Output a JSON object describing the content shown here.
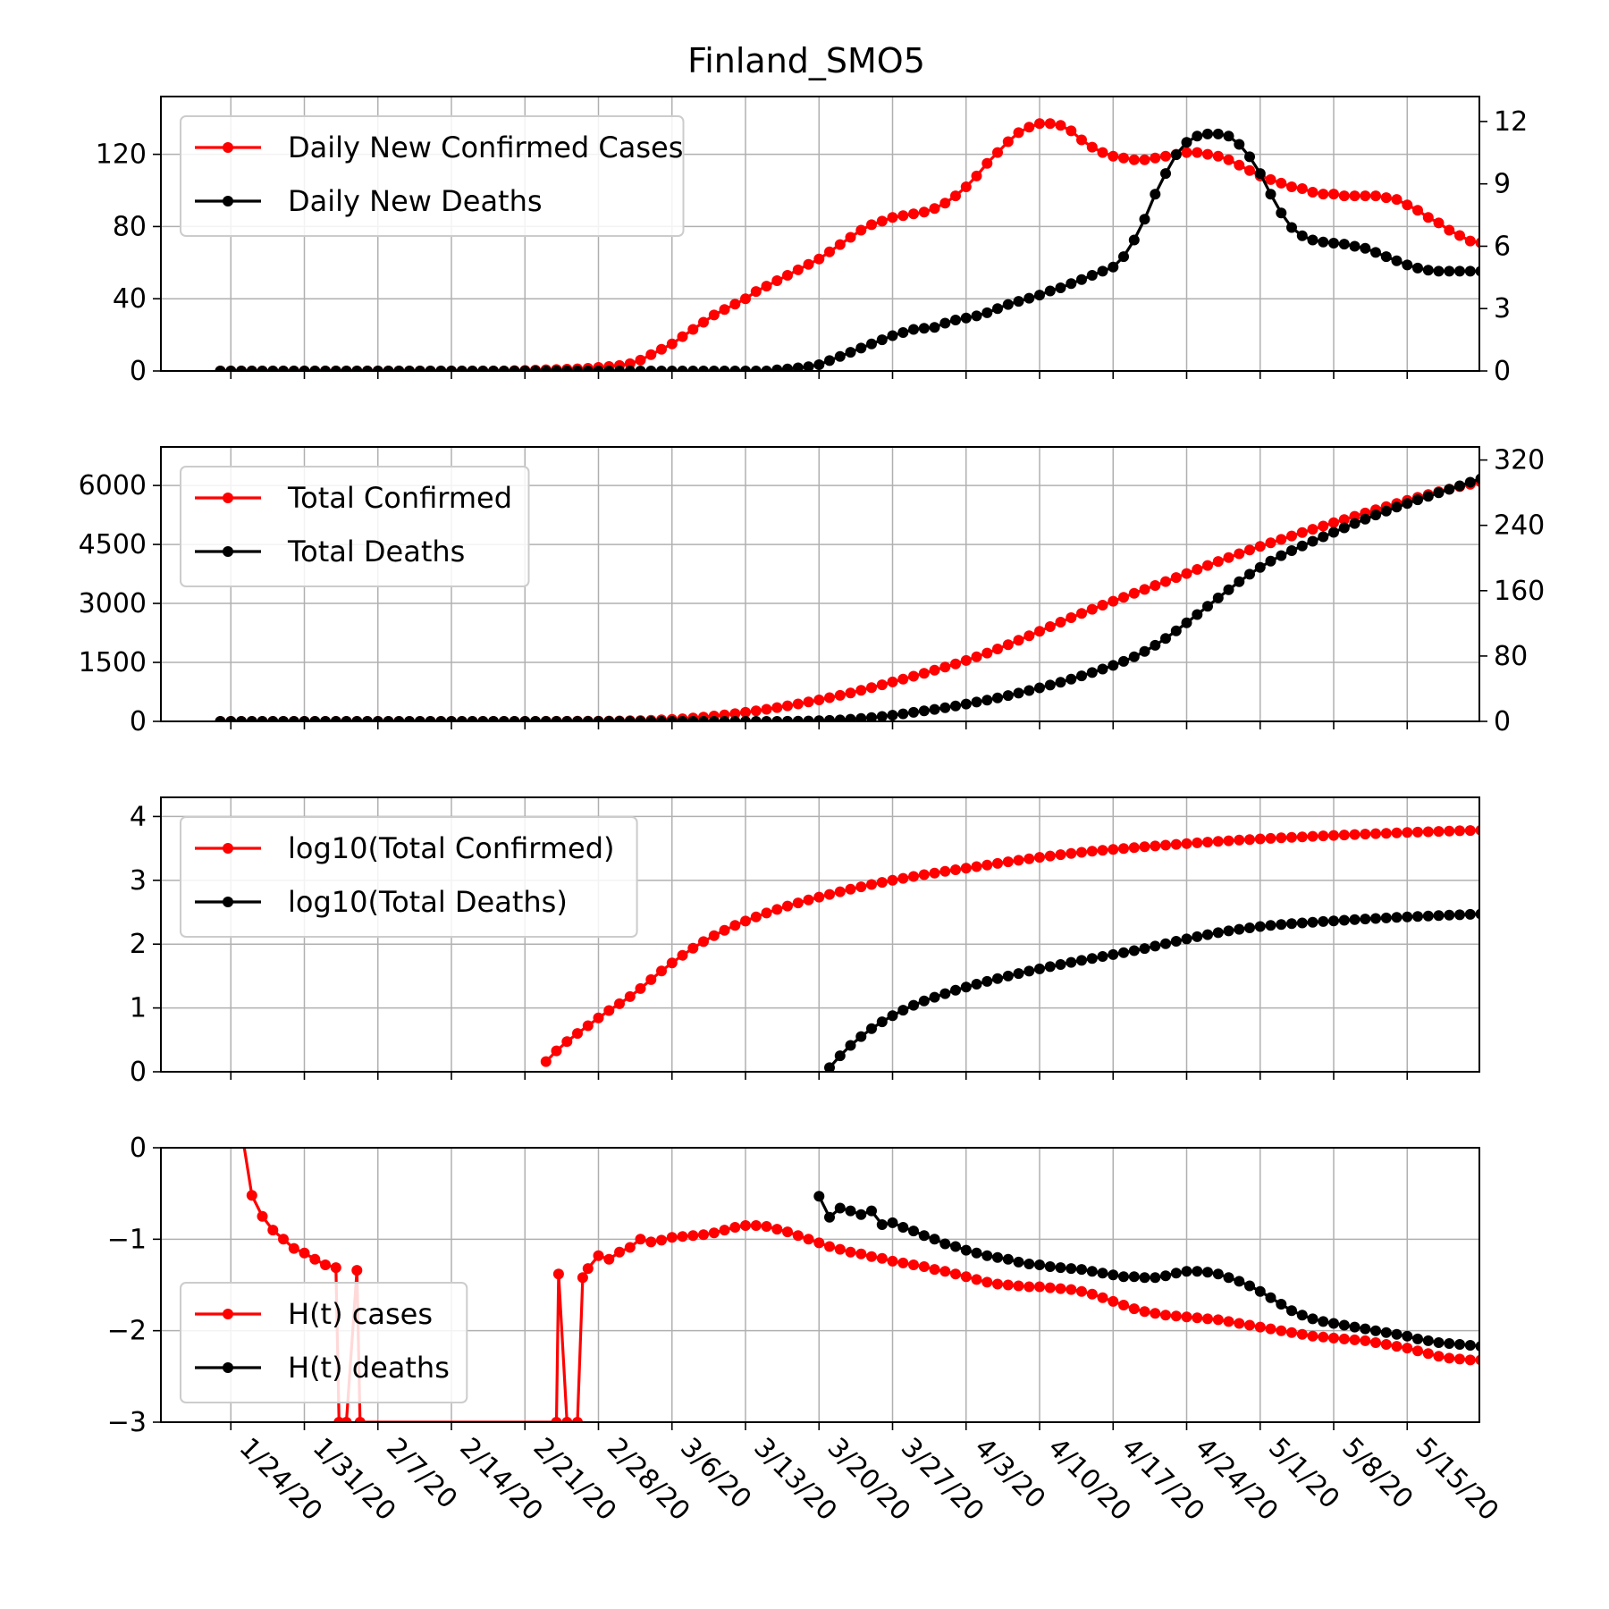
{
  "colors": {
    "cases": "#ff0000",
    "deaths": "#000000",
    "grid": "#b0b0b0"
  },
  "chart_data": [
    {
      "type": "line",
      "title": "Finland_SMO5",
      "x_tick_labels": [
        "1/24/20",
        "1/31/20",
        "2/7/20",
        "2/14/20",
        "2/21/20",
        "2/28/20",
        "3/6/20",
        "3/13/20",
        "3/20/20",
        "3/27/20",
        "4/3/20",
        "4/10/20",
        "4/17/20",
        "4/24/20",
        "5/1/20",
        "5/8/20",
        "5/15/20"
      ],
      "ylim_left": [
        0,
        152
      ],
      "yticks_left": [
        "0",
        "40",
        "80",
        "120"
      ],
      "ylim_right": [
        0,
        13.2
      ],
      "yticks_right": [
        "0",
        "3",
        "6",
        "9",
        "12"
      ],
      "grid": true,
      "legend_position": "upper-left",
      "legend": [
        "Daily New Confirmed Cases",
        "Daily New Deaths"
      ],
      "series": [
        {
          "name": "Daily New Confirmed Cases",
          "axis": "left",
          "start_date": "1/23/20",
          "values": [
            0,
            0,
            0,
            0,
            0,
            0,
            0,
            0,
            0,
            0,
            0,
            0,
            0,
            0,
            0,
            0,
            0,
            0,
            0,
            0,
            0,
            0,
            0,
            0,
            0,
            0,
            0,
            0,
            0.2,
            0.3,
            0.5,
            0.7,
            0.8,
            1,
            1.2,
            1.5,
            2,
            2.5,
            3,
            4,
            6,
            9,
            12,
            15,
            19,
            23,
            27,
            31,
            34,
            37,
            40,
            44,
            47,
            50,
            53,
            56,
            59,
            62,
            66,
            70,
            74,
            78,
            81,
            83,
            85,
            86,
            87,
            88,
            90,
            93,
            97,
            102,
            108,
            115,
            121,
            127,
            132,
            135,
            137,
            137,
            136,
            133,
            128,
            124,
            121,
            119,
            118,
            117,
            117,
            118,
            119,
            120,
            121,
            121,
            120,
            119,
            117,
            114,
            111,
            108,
            106,
            104,
            102,
            101,
            99,
            98,
            98,
            97,
            97,
            97,
            97,
            96,
            95,
            92,
            89,
            85,
            82,
            78,
            75,
            72,
            71,
            70,
            70,
            70
          ]
        },
        {
          "name": "Daily New Deaths",
          "axis": "right",
          "start_date": "1/23/20",
          "values": [
            0,
            0,
            0,
            0,
            0,
            0,
            0,
            0,
            0,
            0,
            0,
            0,
            0,
            0,
            0,
            0,
            0,
            0,
            0,
            0,
            0,
            0,
            0,
            0,
            0,
            0,
            0,
            0,
            0,
            0,
            0,
            0,
            0,
            0,
            0,
            0,
            0,
            0,
            0,
            0,
            0,
            0,
            0,
            0,
            0,
            0,
            0,
            0,
            0,
            0,
            0,
            0,
            0,
            0.05,
            0.1,
            0.15,
            0.2,
            0.3,
            0.5,
            0.7,
            0.9,
            1.1,
            1.3,
            1.5,
            1.7,
            1.85,
            2,
            2.05,
            2.1,
            2.3,
            2.45,
            2.55,
            2.65,
            2.8,
            3,
            3.2,
            3.35,
            3.5,
            3.65,
            3.85,
            4,
            4.2,
            4.4,
            4.6,
            4.8,
            5,
            5.5,
            6.3,
            7.3,
            8.5,
            9.5,
            10.4,
            11,
            11.3,
            11.4,
            11.4,
            11.3,
            10.9,
            10.3,
            9.5,
            8.5,
            7.6,
            6.9,
            6.5,
            6.3,
            6.2,
            6.15,
            6.1,
            6.0,
            5.9,
            5.7,
            5.5,
            5.3,
            5.1,
            4.95,
            4.85,
            4.8,
            4.8,
            4.8,
            4.8,
            4.8
          ]
        }
      ]
    },
    {
      "type": "line",
      "ylim_left": [
        0,
        6980
      ],
      "yticks_left": [
        "0",
        "1500",
        "3000",
        "4500",
        "6000"
      ],
      "ylim_right": [
        0,
        336
      ],
      "yticks_right": [
        "0",
        "80",
        "160",
        "240",
        "320"
      ],
      "grid": true,
      "legend_position": "upper-left",
      "legend": [
        "Total Confirmed",
        "Total Deaths"
      ],
      "series": [
        {
          "name": "Total Confirmed",
          "axis": "left",
          "start_date": "1/23/20",
          "derived_from": "cumulative of Daily New Confirmed Cases"
        },
        {
          "name": "Total Deaths",
          "axis": "right",
          "start_date": "1/23/20",
          "derived_from": "cumulative of Daily New Deaths"
        }
      ]
    },
    {
      "type": "line",
      "ylim_left": [
        0,
        4.3
      ],
      "yticks_left": [
        "0",
        "1",
        "2",
        "3",
        "4"
      ],
      "grid": true,
      "legend_position": "upper-left",
      "legend": [
        "log10(Total Confirmed)",
        "log10(Total Deaths)"
      ],
      "series": [
        {
          "name": "log10(Total Confirmed)",
          "axis": "left",
          "start_date": "1/23/20",
          "derived_from": "log10 of Total Confirmed"
        },
        {
          "name": "log10(Total Deaths)",
          "axis": "left",
          "start_date": "1/23/20",
          "derived_from": "log10 of Total Deaths"
        }
      ]
    },
    {
      "type": "line",
      "ylim_left": [
        -3,
        0
      ],
      "yticks_left": [
        "−3",
        "−2",
        "−1",
        "0"
      ],
      "grid": true,
      "legend_position": "lower-left",
      "legend": [
        "H(t) cases",
        "H(t) deaths"
      ],
      "series": [
        {
          "name": "H(t) cases",
          "axis": "left",
          "points": [
            [
              2,
              0.2
            ],
            [
              3,
              -0.52
            ],
            [
              4,
              -0.75
            ],
            [
              5,
              -0.9
            ],
            [
              6,
              -1.0
            ],
            [
              7,
              -1.1
            ],
            [
              8,
              -1.15
            ],
            [
              9,
              -1.22
            ],
            [
              10,
              -1.28
            ],
            [
              11,
              -1.31
            ],
            [
              11.3,
              -3
            ],
            [
              12,
              -3
            ],
            [
              13,
              -1.34
            ],
            [
              13.3,
              -3
            ],
            [
              32,
              -3
            ],
            [
              32.2,
              -1.38
            ],
            [
              33,
              -3
            ],
            [
              34,
              -3
            ],
            [
              34.5,
              -1.42
            ],
            [
              35,
              -1.32
            ],
            [
              36,
              -1.18
            ],
            [
              37,
              -1.22
            ],
            [
              38,
              -1.14
            ],
            [
              39,
              -1.09
            ],
            [
              40,
              -1.0
            ],
            [
              41,
              -1.03
            ],
            [
              42,
              -1.01
            ],
            [
              43,
              -0.98
            ],
            [
              44,
              -0.97
            ],
            [
              45,
              -0.96
            ],
            [
              46,
              -0.95
            ],
            [
              47,
              -0.93
            ],
            [
              48,
              -0.9
            ],
            [
              49,
              -0.87
            ],
            [
              50,
              -0.85
            ],
            [
              51,
              -0.85
            ],
            [
              52,
              -0.86
            ],
            [
              53,
              -0.89
            ],
            [
              54,
              -0.92
            ],
            [
              55,
              -0.96
            ],
            [
              56,
              -1.0
            ],
            [
              57,
              -1.04
            ],
            [
              58,
              -1.08
            ],
            [
              59,
              -1.11
            ],
            [
              60,
              -1.14
            ],
            [
              61,
              -1.16
            ],
            [
              62,
              -1.19
            ],
            [
              63,
              -1.21
            ],
            [
              64,
              -1.24
            ],
            [
              65,
              -1.26
            ],
            [
              66,
              -1.28
            ],
            [
              67,
              -1.3
            ],
            [
              68,
              -1.33
            ],
            [
              69,
              -1.35
            ],
            [
              70,
              -1.38
            ],
            [
              71,
              -1.41
            ],
            [
              72,
              -1.44
            ],
            [
              73,
              -1.47
            ],
            [
              74,
              -1.49
            ],
            [
              75,
              -1.5
            ],
            [
              76,
              -1.51
            ],
            [
              77,
              -1.52
            ],
            [
              78,
              -1.52
            ],
            [
              79,
              -1.53
            ],
            [
              80,
              -1.54
            ],
            [
              81,
              -1.55
            ],
            [
              82,
              -1.57
            ],
            [
              83,
              -1.6
            ],
            [
              84,
              -1.64
            ],
            [
              85,
              -1.68
            ],
            [
              86,
              -1.72
            ],
            [
              87,
              -1.76
            ],
            [
              88,
              -1.79
            ],
            [
              89,
              -1.81
            ],
            [
              90,
              -1.83
            ],
            [
              91,
              -1.84
            ],
            [
              92,
              -1.85
            ],
            [
              93,
              -1.86
            ],
            [
              94,
              -1.87
            ],
            [
              95,
              -1.88
            ],
            [
              96,
              -1.9
            ],
            [
              97,
              -1.92
            ],
            [
              98,
              -1.94
            ],
            [
              99,
              -1.96
            ],
            [
              100,
              -1.98
            ],
            [
              101,
              -2.0
            ],
            [
              102,
              -2.02
            ],
            [
              103,
              -2.04
            ],
            [
              104,
              -2.06
            ],
            [
              105,
              -2.07
            ],
            [
              106,
              -2.08
            ],
            [
              107,
              -2.09
            ],
            [
              108,
              -2.1
            ],
            [
              109,
              -2.11
            ],
            [
              110,
              -2.13
            ],
            [
              111,
              -2.15
            ],
            [
              112,
              -2.17
            ],
            [
              113,
              -2.19
            ],
            [
              114,
              -2.22
            ],
            [
              115,
              -2.25
            ],
            [
              116,
              -2.28
            ],
            [
              117,
              -2.3
            ],
            [
              118,
              -2.31
            ],
            [
              119,
              -2.32
            ],
            [
              120,
              -2.32
            ],
            [
              121,
              -2.32
            ]
          ]
        },
        {
          "name": "H(t) deaths",
          "axis": "left",
          "points": [
            [
              57,
              -0.53
            ],
            [
              58,
              -0.76
            ],
            [
              59,
              -0.66
            ],
            [
              60,
              -0.69
            ],
            [
              61,
              -0.73
            ],
            [
              62,
              -0.69
            ],
            [
              63,
              -0.84
            ],
            [
              64,
              -0.82
            ],
            [
              65,
              -0.87
            ],
            [
              66,
              -0.91
            ],
            [
              67,
              -0.96
            ],
            [
              68,
              -1.0
            ],
            [
              69,
              -1.05
            ],
            [
              70,
              -1.08
            ],
            [
              71,
              -1.12
            ],
            [
              72,
              -1.15
            ],
            [
              73,
              -1.18
            ],
            [
              74,
              -1.2
            ],
            [
              75,
              -1.22
            ],
            [
              76,
              -1.25
            ],
            [
              77,
              -1.27
            ],
            [
              78,
              -1.28
            ],
            [
              79,
              -1.3
            ],
            [
              80,
              -1.31
            ],
            [
              81,
              -1.32
            ],
            [
              82,
              -1.33
            ],
            [
              83,
              -1.35
            ],
            [
              84,
              -1.37
            ],
            [
              85,
              -1.39
            ],
            [
              86,
              -1.41
            ],
            [
              87,
              -1.41
            ],
            [
              88,
              -1.42
            ],
            [
              89,
              -1.42
            ],
            [
              90,
              -1.4
            ],
            [
              91,
              -1.37
            ],
            [
              92,
              -1.35
            ],
            [
              93,
              -1.35
            ],
            [
              94,
              -1.36
            ],
            [
              95,
              -1.38
            ],
            [
              96,
              -1.42
            ],
            [
              97,
              -1.46
            ],
            [
              98,
              -1.51
            ],
            [
              99,
              -1.57
            ],
            [
              100,
              -1.64
            ],
            [
              101,
              -1.71
            ],
            [
              102,
              -1.78
            ],
            [
              103,
              -1.83
            ],
            [
              104,
              -1.87
            ],
            [
              105,
              -1.9
            ],
            [
              106,
              -1.92
            ],
            [
              107,
              -1.94
            ],
            [
              108,
              -1.96
            ],
            [
              109,
              -1.98
            ],
            [
              110,
              -2.0
            ],
            [
              111,
              -2.02
            ],
            [
              112,
              -2.04
            ],
            [
              113,
              -2.06
            ],
            [
              114,
              -2.09
            ],
            [
              115,
              -2.11
            ],
            [
              116,
              -2.13
            ],
            [
              117,
              -2.14
            ],
            [
              118,
              -2.15
            ],
            [
              119,
              -2.16
            ],
            [
              120,
              -2.17
            ]
          ]
        }
      ]
    }
  ]
}
